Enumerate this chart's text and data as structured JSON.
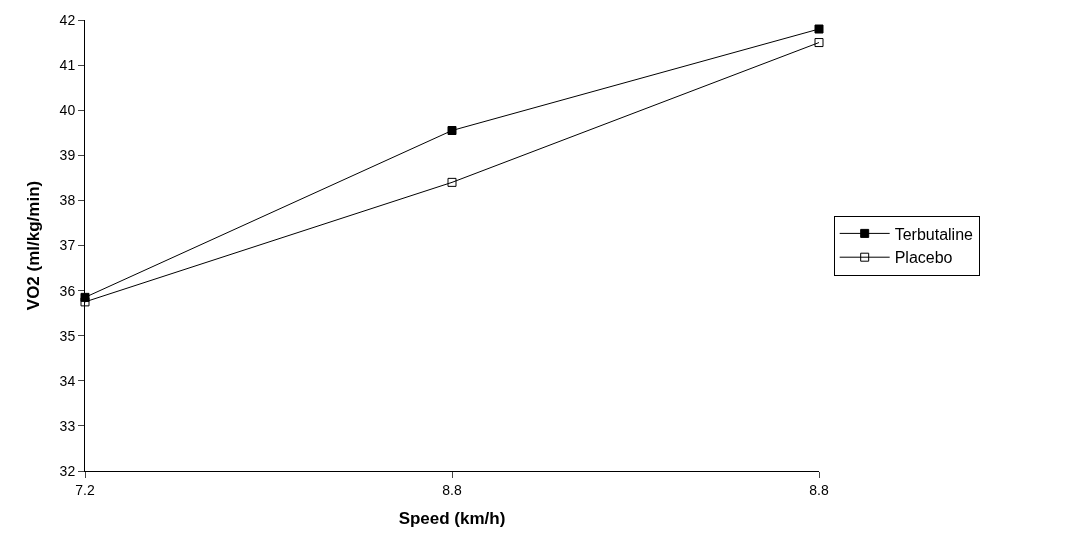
{
  "chart_data": {
    "type": "line",
    "xlabel": "Speed (km/h)",
    "ylabel": "VO2 (ml/kg/min)",
    "categories": [
      "7.2",
      "8.8",
      "8.8"
    ],
    "series": [
      {
        "name": "Terbutaline",
        "color": "#000000",
        "values": [
          35.85,
          39.55,
          41.8
        ]
      },
      {
        "name": "Placebo",
        "color": "#000000",
        "values": [
          35.75,
          38.4,
          41.5
        ]
      }
    ],
    "ylim": [
      32,
      42
    ],
    "yticks": [
      32,
      33,
      34,
      35,
      36,
      37,
      38,
      39,
      40,
      41,
      42
    ],
    "legend": "right",
    "marker": "square",
    "line_style": "solid"
  }
}
